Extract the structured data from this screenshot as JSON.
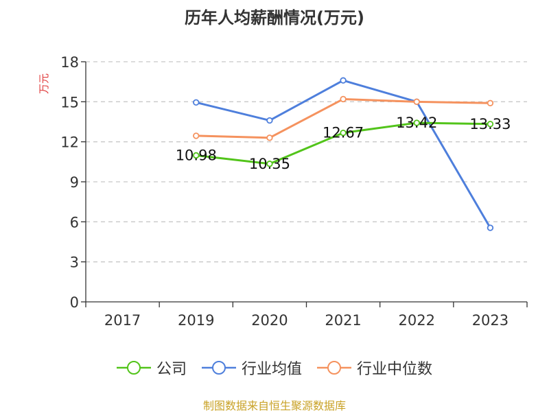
{
  "chart_data": {
    "type": "line",
    "title": "历年人均薪酬情况(万元)",
    "ylabel": "万元",
    "xlabel": "",
    "categories": [
      "2017",
      "2019",
      "2020",
      "2021",
      "2022",
      "2023"
    ],
    "ylim": [
      0,
      18
    ],
    "yticks": [
      0,
      3,
      6,
      9,
      12,
      15,
      18
    ],
    "grid": "horizontal-dashed",
    "legend_position": "bottom",
    "series": [
      {
        "name": "公司",
        "color": "#52c41a",
        "values": [
          null,
          10.98,
          10.35,
          12.67,
          13.42,
          13.33
        ],
        "labels": [
          "",
          "10.98",
          "10.35",
          "12.67",
          "13.42",
          "13.33"
        ]
      },
      {
        "name": "行业均值",
        "color": "#4e7fdc",
        "values": [
          null,
          14.95,
          13.6,
          16.6,
          15.0,
          5.55
        ]
      },
      {
        "name": "行业中位数",
        "color": "#f5925e",
        "values": [
          null,
          12.45,
          12.3,
          15.2,
          15.0,
          14.9
        ]
      }
    ]
  },
  "source": "制图数据来自恒生聚源数据库"
}
